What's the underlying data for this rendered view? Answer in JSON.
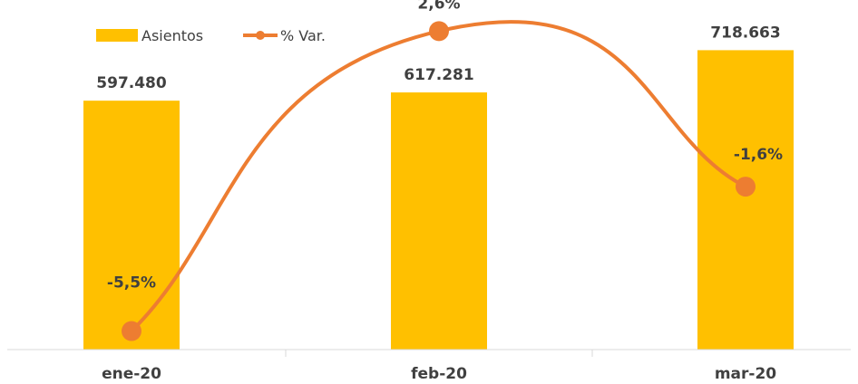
{
  "chart_data": {
    "type": "bar",
    "categories": [
      "ene-20",
      "feb-20",
      "mar-20"
    ],
    "series": [
      {
        "name": "Asientos",
        "type": "bar",
        "axis": "left",
        "values": [
          597480,
          617281,
          718663
        ],
        "labels": [
          "597.480",
          "617.281",
          "718.663"
        ],
        "color": "#FFC000"
      },
      {
        "name": "% Var.",
        "type": "line",
        "smooth": true,
        "axis": "right",
        "values": [
          -5.5,
          2.6,
          -1.6
        ],
        "labels": [
          "-5,5%",
          "2,6%",
          "-1,6%"
        ],
        "color": "#ED7D31"
      }
    ],
    "title": "",
    "xlabel": "",
    "ylabel": "",
    "ylim": [
      0,
      800000
    ],
    "y2lim": [
      -6,
      3
    ],
    "grid": false,
    "legend": "top-left"
  }
}
